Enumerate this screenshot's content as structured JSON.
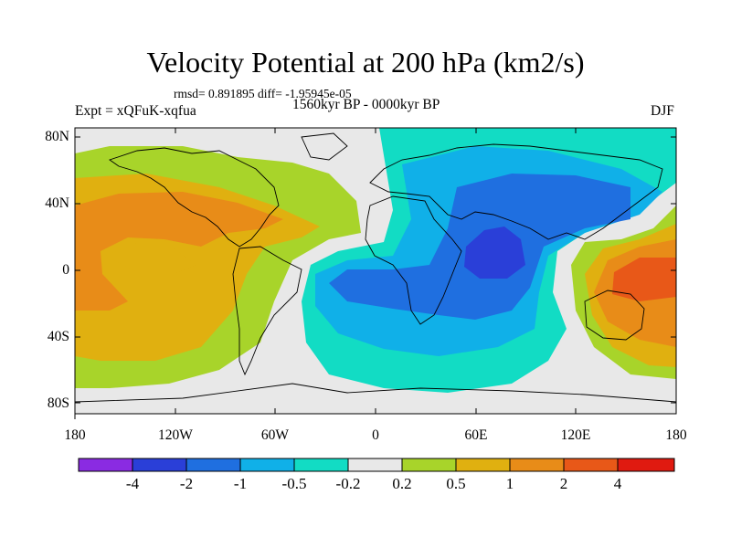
{
  "header": {
    "title": "Velocity Potential at 200 hPa (km2/s)",
    "stats": "rmsd= 0.891895 diff= -1.95945e-05",
    "experiment": "Expt = xQFuK-xqfua",
    "period": "1560kyr BP - 0000kyr BP",
    "season": "DJF"
  },
  "axes": {
    "lat_labels": [
      "80N",
      "40N",
      "0",
      "40S",
      "80S"
    ],
    "lat_values": [
      80,
      40,
      0,
      -40,
      -80
    ],
    "lon_labels": [
      "180",
      "120W",
      "60W",
      "0",
      "60E",
      "120E",
      "180"
    ],
    "lon_values": [
      -180,
      -120,
      -60,
      0,
      60,
      120,
      180
    ],
    "lon_range": [
      -180,
      180
    ],
    "lat_range": [
      -90,
      90
    ]
  },
  "colorbar": {
    "labels": [
      "-4",
      "-2",
      "-1",
      "-0.5",
      "-0.2",
      "0.2",
      "0.5",
      "1",
      "2",
      "4"
    ],
    "colors": [
      "#8a2be2",
      "#2a3fd8",
      "#1f6fe0",
      "#10b0e8",
      "#12dcc4",
      "#e8e8e8",
      "#a8d42a",
      "#e0b010",
      "#e88c18",
      "#e85818",
      "#e01a10"
    ]
  },
  "colors": {
    "neutral": "#e8e8e8",
    "light_green": "#a8d42a",
    "yellow_orange": "#e0b010",
    "orange": "#e88c18",
    "red_orange": "#e85818",
    "cyan": "#12dcc4",
    "light_blue": "#10b0e8",
    "blue": "#1f6fe0",
    "dark_blue": "#2a3fd8"
  }
}
